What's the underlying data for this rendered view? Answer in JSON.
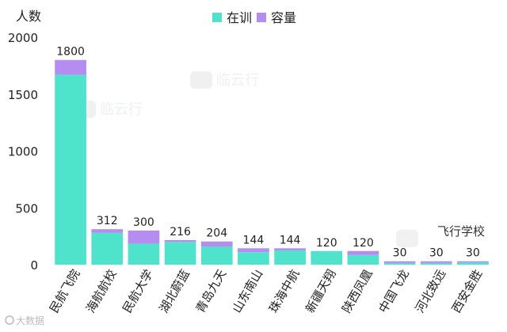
{
  "chart_data": {
    "type": "bar",
    "stacked": true,
    "ylabel": "人数",
    "xlabel": "飞行学校",
    "ylim": [
      0,
      2000
    ],
    "yticks": [
      0,
      500,
      1000,
      1500,
      2000
    ],
    "grid": false,
    "legend_position": "top-center",
    "categories": [
      "民航飞院",
      "海航航校",
      "民航大学",
      "湖北蔚蓝",
      "青岛九天",
      "山东南山",
      "珠海中航",
      "新疆天翔",
      "陕西凤凰",
      "中国飞龙",
      "河北致远",
      "西安金胜"
    ],
    "series": [
      {
        "name": "在训",
        "color": "#4fe3cb",
        "values": [
          1670,
          280,
          185,
          200,
          160,
          110,
          125,
          118,
          85,
          15,
          15,
          20
        ]
      },
      {
        "name": "容量",
        "color": "#b58cf0",
        "values": [
          130,
          32,
          115,
          16,
          44,
          34,
          19,
          2,
          35,
          15,
          15,
          10
        ]
      }
    ],
    "total_labels": [
      "1800",
      "312",
      "300",
      "216",
      "204",
      "144",
      "144",
      "120",
      "120",
      "30",
      "30",
      "30"
    ]
  },
  "watermark": {
    "text": "临云行",
    "footer": "大数据"
  }
}
